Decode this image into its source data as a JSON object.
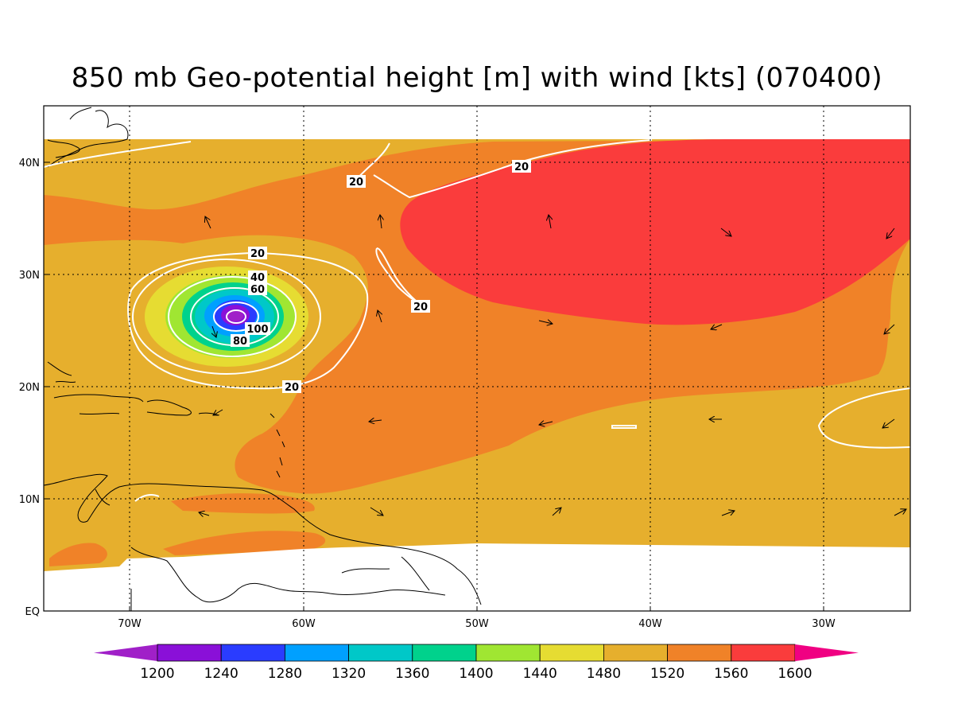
{
  "title": "850 mb Geo-potential height [m] with wind [kts] (070400)",
  "map": {
    "lon_range": [
      -75,
      -25
    ],
    "lat_range": [
      0,
      45
    ],
    "x_ticks": [
      "70W",
      "60W",
      "50W",
      "40W",
      "30W"
    ],
    "y_ticks": [
      "EQ",
      "10N",
      "20N",
      "30N",
      "40N"
    ],
    "gridlines": "dotted",
    "contour_labels": [
      "20",
      "20",
      "20",
      "20",
      "20",
      "40",
      "60",
      "80",
      "100"
    ]
  },
  "colorbar": {
    "levels": [
      "1200",
      "1240",
      "1280",
      "1320",
      "1360",
      "1400",
      "1440",
      "1480",
      "1520",
      "1560",
      "1600"
    ],
    "colors": [
      "#a020c8",
      "#8a10d8",
      "#2a3cff",
      "#00a0ff",
      "#00c8c8",
      "#00d28c",
      "#a0e632",
      "#e6dc32",
      "#e6af2d",
      "#f08228",
      "#fa3c3c",
      "#f00082"
    ]
  }
}
